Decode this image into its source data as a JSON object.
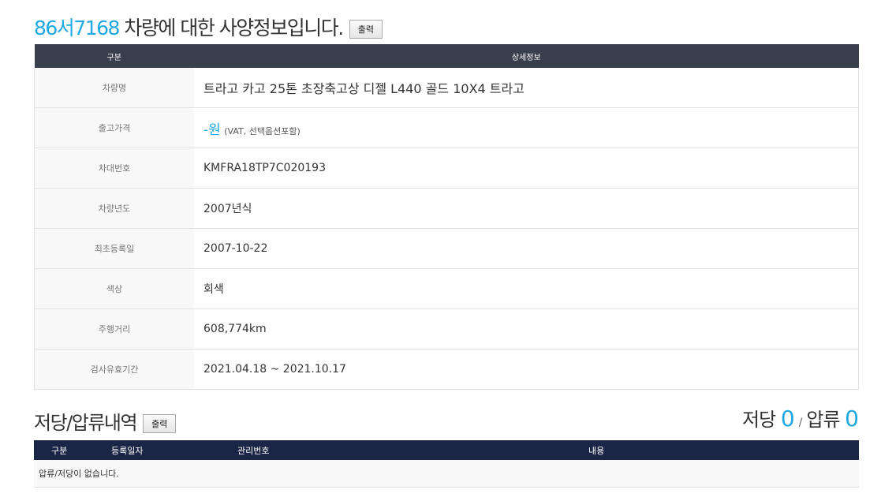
{
  "header": {
    "plate": "86서7168",
    "title_suffix": " 차량에 대한 사양정보입니다.",
    "print_label": "출력"
  },
  "spec": {
    "columns": [
      "구분",
      "상세정보"
    ],
    "rows": [
      {
        "label": "차량명",
        "value": "트라고 카고 25톤 초장축고상 디젤 L440 골드 10X4 트라고"
      },
      {
        "label": "출고가격",
        "value": "-원",
        "note": "(VAT, 선택옵션포함)"
      },
      {
        "label": "차대번호",
        "value": "KMFRA18TP7C020193"
      },
      {
        "label": "차량년도",
        "value": "2007년식"
      },
      {
        "label": "최초등록일",
        "value": "2007-10-22"
      },
      {
        "label": "색상",
        "value": "회색"
      },
      {
        "label": "주행거리",
        "value": "608,774km"
      },
      {
        "label": "검사유효기간",
        "value": "2021.04.18 ~ 2021.10.17"
      }
    ]
  },
  "lien": {
    "title": "저당/압류내역",
    "print_label": "출력",
    "mortgage_label": "저당",
    "mortgage_count": "0",
    "seizure_label": "압류",
    "seizure_count": "0",
    "slash": "/",
    "columns": [
      "구분",
      "등록일자",
      "관리번호",
      "내용"
    ],
    "empty_message": "압류/저당이 없습니다."
  },
  "colors": {
    "accent": "#1fa9e0",
    "spec_header": "#3a3f4d",
    "lien_header": "#1b2545"
  }
}
